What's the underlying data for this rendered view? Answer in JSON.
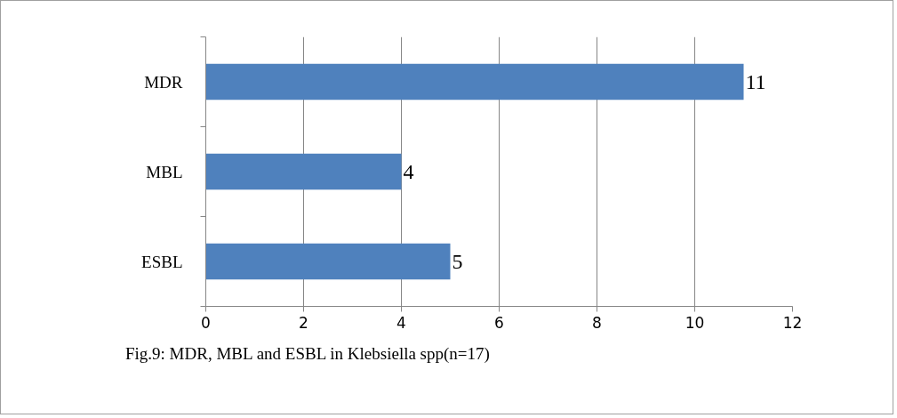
{
  "chart_data": {
    "type": "bar",
    "orientation": "horizontal",
    "categories": [
      "MDR",
      "MBL",
      "ESBL"
    ],
    "values": [
      11,
      4,
      5
    ],
    "color": "#4f81bd",
    "xlim": [
      0,
      12
    ],
    "xticks": [
      0,
      2,
      4,
      6,
      8,
      10,
      12
    ],
    "grid": "x",
    "data_labels": true,
    "annotations": [
      "Fig.9: MDR, MBL and ESBL in Klebsiella spp(n=17)"
    ]
  }
}
